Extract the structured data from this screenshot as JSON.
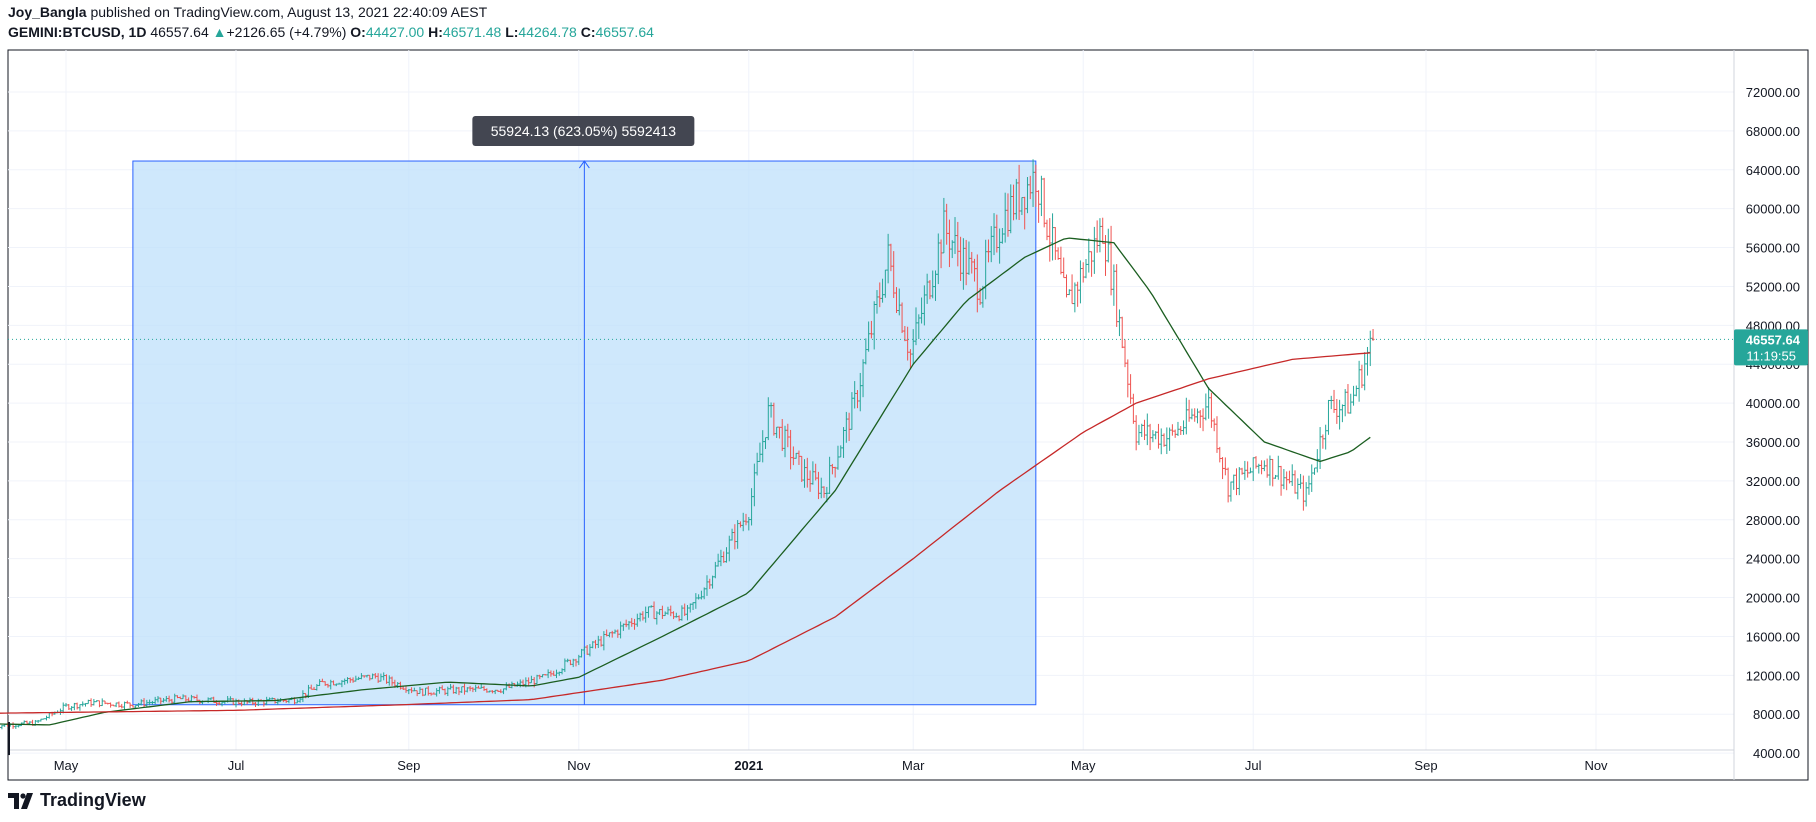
{
  "header": {
    "author": "Joy_Bangla",
    "published_text": "published on TradingView.com, August 13, 2021 22:40:09 AEST",
    "symbol": "GEMINI:BTCUSD, 1D",
    "last": "46557.64",
    "arrow": "▲",
    "change": "+2126.65 (+4.79%)",
    "o_label": "O:",
    "o_value": "44427.00",
    "h_label": "H:",
    "h_value": "46571.48",
    "l_label": "L:",
    "l_value": "44264.78",
    "c_label": "C:",
    "c_value": "46557.64"
  },
  "footer": {
    "brand": "TradingView"
  },
  "colors": {
    "up": "#26a69a",
    "down": "#ef5350",
    "sma_short": "#1b5e20",
    "sma_long": "#c62828",
    "measure_fill": "#bbdefb",
    "measure_line": "#2962ff",
    "grid": "#f0f3fa",
    "price_badge": "#26a69a"
  },
  "chart_data": {
    "type": "candlestick",
    "title": "",
    "y_ticks": [
      "4000.00",
      "8000.00",
      "12000.00",
      "16000.00",
      "20000.00",
      "24000.00",
      "28000.00",
      "32000.00",
      "36000.00",
      "40000.00",
      "44000.00",
      "48000.00",
      "52000.00",
      "56000.00",
      "60000.00",
      "64000.00",
      "68000.00",
      "72000.00"
    ],
    "x_ticks": [
      "May",
      "Jul",
      "Sep",
      "Nov",
      "2021",
      "Mar",
      "May",
      "Jul",
      "Sep",
      "Nov"
    ],
    "x_tick_bold": [
      false,
      false,
      false,
      false,
      true,
      false,
      false,
      false,
      false,
      false
    ],
    "ylim": [
      0,
      72000
    ],
    "last_price_label": "46557.64",
    "countdown_label": "11:19:55",
    "measure": {
      "label": "55924.13 (623.05%) 5592413",
      "from_price": 8976,
      "to_price": 64900,
      "start_date": "2020-05-25",
      "end_date": "2021-04-14"
    },
    "price_path": [
      [
        "2020-04-05",
        6800
      ],
      [
        "2020-04-20",
        7100
      ],
      [
        "2020-05-01",
        8800
      ],
      [
        "2020-05-10",
        9200
      ],
      [
        "2020-05-25",
        9000
      ],
      [
        "2020-06-10",
        9600
      ],
      [
        "2020-07-05",
        9200
      ],
      [
        "2020-07-22",
        9500
      ],
      [
        "2020-08-01",
        11200
      ],
      [
        "2020-08-20",
        11900
      ],
      [
        "2020-09-05",
        10300
      ],
      [
        "2020-09-20",
        10500
      ],
      [
        "2020-10-05",
        10600
      ],
      [
        "2020-10-20",
        11800
      ],
      [
        "2020-11-05",
        14800
      ],
      [
        "2020-11-25",
        18500
      ],
      [
        "2020-12-10",
        18300
      ],
      [
        "2020-12-20",
        23000
      ],
      [
        "2021-01-01",
        29000
      ],
      [
        "2021-01-08",
        39000
      ],
      [
        "2021-01-20",
        33000
      ],
      [
        "2021-01-28",
        31000
      ],
      [
        "2021-02-08",
        40000
      ],
      [
        "2021-02-20",
        55000
      ],
      [
        "2021-02-28",
        45000
      ],
      [
        "2021-03-12",
        58000
      ],
      [
        "2021-03-25",
        52000
      ],
      [
        "2021-04-02",
        59000
      ],
      [
        "2021-04-14",
        63500
      ],
      [
        "2021-04-25",
        50000
      ],
      [
        "2021-05-08",
        58000
      ],
      [
        "2021-05-12",
        52000
      ],
      [
        "2021-05-20",
        37000
      ],
      [
        "2021-06-01",
        36500
      ],
      [
        "2021-06-15",
        40000
      ],
      [
        "2021-06-22",
        31500
      ],
      [
        "2021-07-05",
        34000
      ],
      [
        "2021-07-20",
        30500
      ],
      [
        "2021-07-28",
        39500
      ],
      [
        "2021-08-05",
        40000
      ],
      [
        "2021-08-13",
        46557.64
      ]
    ],
    "series": [
      {
        "name": "",
        "points": [
          [
            "2020-04-05",
            7000
          ],
          [
            "2020-04-25",
            6900
          ],
          [
            "2020-05-15",
            8200
          ],
          [
            "2020-06-15",
            9300
          ],
          [
            "2020-07-15",
            9400
          ],
          [
            "2020-08-15",
            10500
          ],
          [
            "2020-09-15",
            11300
          ],
          [
            "2020-10-15",
            10900
          ],
          [
            "2020-11-01",
            11800
          ],
          [
            "2020-12-01",
            16000
          ],
          [
            "2021-01-01",
            20500
          ],
          [
            "2021-02-01",
            31000
          ],
          [
            "2021-03-01",
            44000
          ],
          [
            "2021-03-20",
            50500
          ],
          [
            "2021-04-10",
            55000
          ],
          [
            "2021-04-25",
            57000
          ],
          [
            "2021-05-12",
            56500
          ],
          [
            "2021-05-25",
            51500
          ],
          [
            "2021-06-15",
            41500
          ],
          [
            "2021-07-05",
            36000
          ],
          [
            "2021-07-25",
            34000
          ],
          [
            "2021-08-05",
            35000
          ],
          [
            "2021-08-13",
            36700
          ]
        ]
      },
      {
        "name": "",
        "points": [
          [
            "2020-04-05",
            8100
          ],
          [
            "2020-07-01",
            8400
          ],
          [
            "2020-09-01",
            9000
          ],
          [
            "2020-10-15",
            9500
          ],
          [
            "2020-12-01",
            11500
          ],
          [
            "2021-01-01",
            13500
          ],
          [
            "2021-02-01",
            18000
          ],
          [
            "2021-03-01",
            24000
          ],
          [
            "2021-04-01",
            31000
          ],
          [
            "2021-05-01",
            37000
          ],
          [
            "2021-05-20",
            40000
          ],
          [
            "2021-06-15",
            42500
          ],
          [
            "2021-07-15",
            44500
          ],
          [
            "2021-08-13",
            45200
          ]
        ]
      }
    ]
  }
}
